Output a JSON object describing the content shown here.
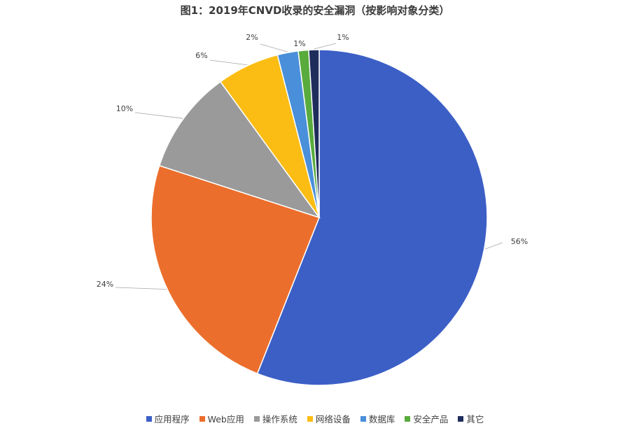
{
  "chart_data": {
    "type": "pie",
    "title": "图1：2019年CNVD收录的安全漏洞（按影响对象分类）",
    "categories": [
      "应用程序",
      "Web应用",
      "操作系统",
      "网络设备",
      "数据库",
      "安全产品",
      "其它"
    ],
    "values": [
      56,
      24,
      10,
      6,
      2,
      1,
      1
    ],
    "labels": [
      "56%",
      "24%",
      "10%",
      "6%",
      "2%",
      "1%",
      "1%"
    ],
    "colors": [
      "#3c5fc6",
      "#ec6e2c",
      "#9a9a9a",
      "#fbbd14",
      "#4a8fd9",
      "#58ab3c",
      "#1f2d5c"
    ],
    "legend_position": "bottom",
    "start": "12 o'clock, clockwise"
  }
}
